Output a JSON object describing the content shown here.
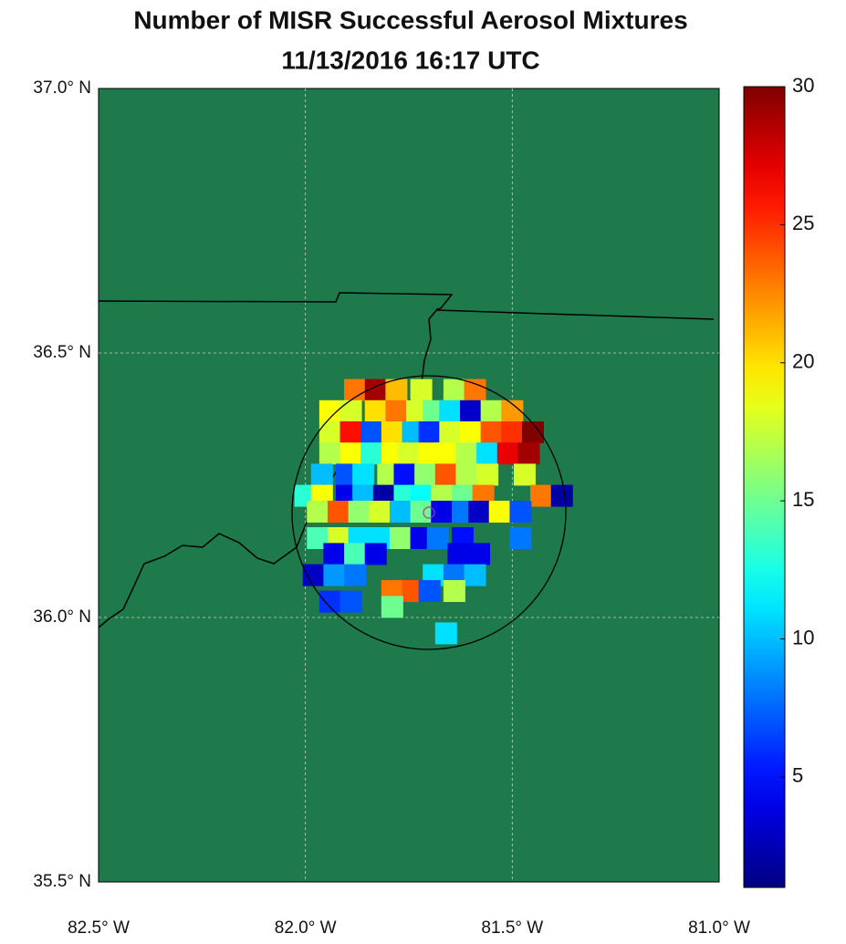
{
  "chart_data": {
    "type": "map",
    "title": "Number of MISR Successful Aerosol Mixtures",
    "subtitle": "11/13/2016 16:17 UTC",
    "background": "#1f7a4b",
    "colormap": "jet",
    "xlim": [
      -82.5,
      -81.0
    ],
    "ylim": [
      35.5,
      37.0
    ],
    "xticks": [
      {
        "value": -82.5,
        "label": "82.5° W"
      },
      {
        "value": -82.0,
        "label": "82.0° W"
      },
      {
        "value": -81.5,
        "label": "81.5° W"
      },
      {
        "value": -81.0,
        "label": "81.0° W"
      }
    ],
    "yticks": [
      {
        "value": 35.5,
        "label": "35.5° N"
      },
      {
        "value": 36.0,
        "label": "36.0° N"
      },
      {
        "value": 36.5,
        "label": "36.5° N"
      },
      {
        "value": 37.0,
        "label": "37.0° N"
      }
    ],
    "grid": true,
    "clim": [
      1,
      30
    ],
    "cticks": [
      5,
      10,
      15,
      20,
      25,
      30
    ],
    "lons": [
      -81.88,
      -81.83,
      -81.78,
      -81.72,
      -81.64,
      -81.59,
      -81.94,
      -81.89,
      -81.83,
      -81.78,
      -81.73,
      -81.69,
      -81.65,
      -81.6,
      -81.55,
      -81.5,
      -81.94,
      -81.89,
      -81.84,
      -81.79,
      -81.74,
      -81.7,
      -81.65,
      -81.6,
      -81.55,
      -81.5,
      -81.45,
      -81.94,
      -81.89,
      -81.84,
      -81.79,
      -81.75,
      -81.7,
      -81.66,
      -81.61,
      -81.56,
      -81.51,
      -81.46,
      -81.96,
      -81.9,
      -81.86,
      -81.8,
      -81.76,
      -81.71,
      -81.66,
      -81.61,
      -81.56,
      -81.47,
      -82.0,
      -81.96,
      -81.9,
      -81.86,
      -81.81,
      -81.76,
      -81.72,
      -81.67,
      -81.62,
      -81.57,
      -81.43,
      -81.38,
      -81.97,
      -81.92,
      -81.87,
      -81.82,
      -81.77,
      -81.72,
      -81.67,
      -81.62,
      -81.58,
      -81.53,
      -81.48,
      -81.97,
      -81.92,
      -81.87,
      -81.82,
      -81.77,
      -81.72,
      -81.68,
      -81.62,
      -81.48,
      -81.93,
      -81.88,
      -81.83,
      -81.63,
      -81.58,
      -81.98,
      -81.93,
      -81.88,
      -81.69,
      -81.64,
      -81.59,
      -81.79,
      -81.74,
      -81.7,
      -81.64,
      -81.94,
      -81.89,
      -81.79,
      -81.66
    ],
    "lats": [
      36.43,
      36.43,
      36.43,
      36.43,
      36.43,
      36.43,
      36.39,
      36.39,
      36.39,
      36.39,
      36.39,
      36.39,
      36.39,
      36.39,
      36.39,
      36.39,
      36.35,
      36.35,
      36.35,
      36.35,
      36.35,
      36.35,
      36.35,
      36.35,
      36.35,
      36.35,
      36.35,
      36.31,
      36.31,
      36.31,
      36.31,
      36.31,
      36.31,
      36.31,
      36.31,
      36.31,
      36.31,
      36.31,
      36.27,
      36.27,
      36.27,
      36.27,
      36.27,
      36.27,
      36.27,
      36.27,
      36.27,
      36.27,
      36.23,
      36.23,
      36.23,
      36.23,
      36.23,
      36.23,
      36.23,
      36.23,
      36.23,
      36.23,
      36.23,
      36.23,
      36.2,
      36.2,
      36.2,
      36.2,
      36.2,
      36.2,
      36.2,
      36.2,
      36.2,
      36.2,
      36.2,
      36.15,
      36.15,
      36.15,
      36.15,
      36.15,
      36.15,
      36.15,
      36.15,
      36.15,
      36.12,
      36.12,
      36.12,
      36.12,
      36.12,
      36.08,
      36.08,
      36.08,
      36.08,
      36.08,
      36.08,
      36.05,
      36.05,
      36.05,
      36.05,
      36.03,
      36.03,
      36.02,
      35.97
    ],
    "values": [
      23,
      29,
      21,
      18,
      17,
      23,
      19,
      18,
      20,
      23,
      18,
      15,
      11,
      3,
      17,
      22,
      18,
      26,
      7,
      20,
      10,
      6,
      18,
      19,
      24,
      25,
      30,
      17,
      19,
      13,
      19,
      18,
      19,
      19,
      17,
      11,
      27,
      29,
      10,
      7,
      11,
      17,
      5,
      16,
      24,
      17,
      18,
      18,
      13,
      19,
      4,
      10,
      2,
      13,
      12,
      17,
      15,
      23,
      23,
      2,
      17,
      24,
      16,
      18,
      10,
      15,
      4,
      8,
      3,
      19,
      7,
      14,
      18,
      11,
      11,
      16,
      4,
      8,
      5,
      8,
      4,
      14,
      4,
      4,
      4,
      3,
      9,
      8,
      11,
      8,
      10,
      23,
      24,
      7,
      17,
      6,
      7,
      15,
      11
    ]
  }
}
